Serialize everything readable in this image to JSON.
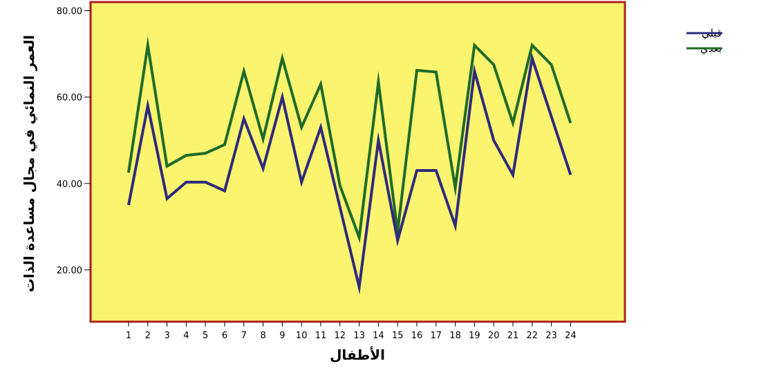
{
  "chart_data": {
    "type": "line",
    "title": "",
    "xlabel": "الأطفال",
    "ylabel": "العمر النمائي في مجال مساعدة الذات",
    "x": [
      1,
      2,
      3,
      4,
      5,
      6,
      7,
      8,
      9,
      10,
      11,
      12,
      13,
      14,
      15,
      16,
      17,
      18,
      19,
      20,
      21,
      22,
      23,
      24
    ],
    "ylim": [
      8,
      82
    ],
    "yticks": [
      20,
      40,
      60,
      80
    ],
    "ytick_labels": [
      "20.00",
      "40.00",
      "60.00",
      "80.00"
    ],
    "grid": false,
    "legend_position": "top-right",
    "plot_background": "#FAF46E",
    "plot_border": "#B01E1E",
    "series": [
      {
        "name": "قبلي",
        "color": "#2E2A7E",
        "values": [
          35,
          58,
          36.5,
          40.3,
          40.3,
          38.3,
          55,
          43.5,
          60,
          40.3,
          53,
          34.5,
          16,
          50,
          26.8,
          43,
          43,
          30.2,
          66,
          50,
          42,
          69,
          55.5,
          42
        ]
      },
      {
        "name": "بعدي",
        "color": "#1E6B2A",
        "values": [
          42.5,
          72,
          44,
          46.5,
          47,
          49,
          66,
          50.3,
          69,
          53,
          63,
          39.5,
          27.5,
          63.5,
          28.8,
          66.2,
          65.8,
          39,
          72,
          67.5,
          54,
          72,
          67.5,
          54
        ]
      }
    ]
  }
}
